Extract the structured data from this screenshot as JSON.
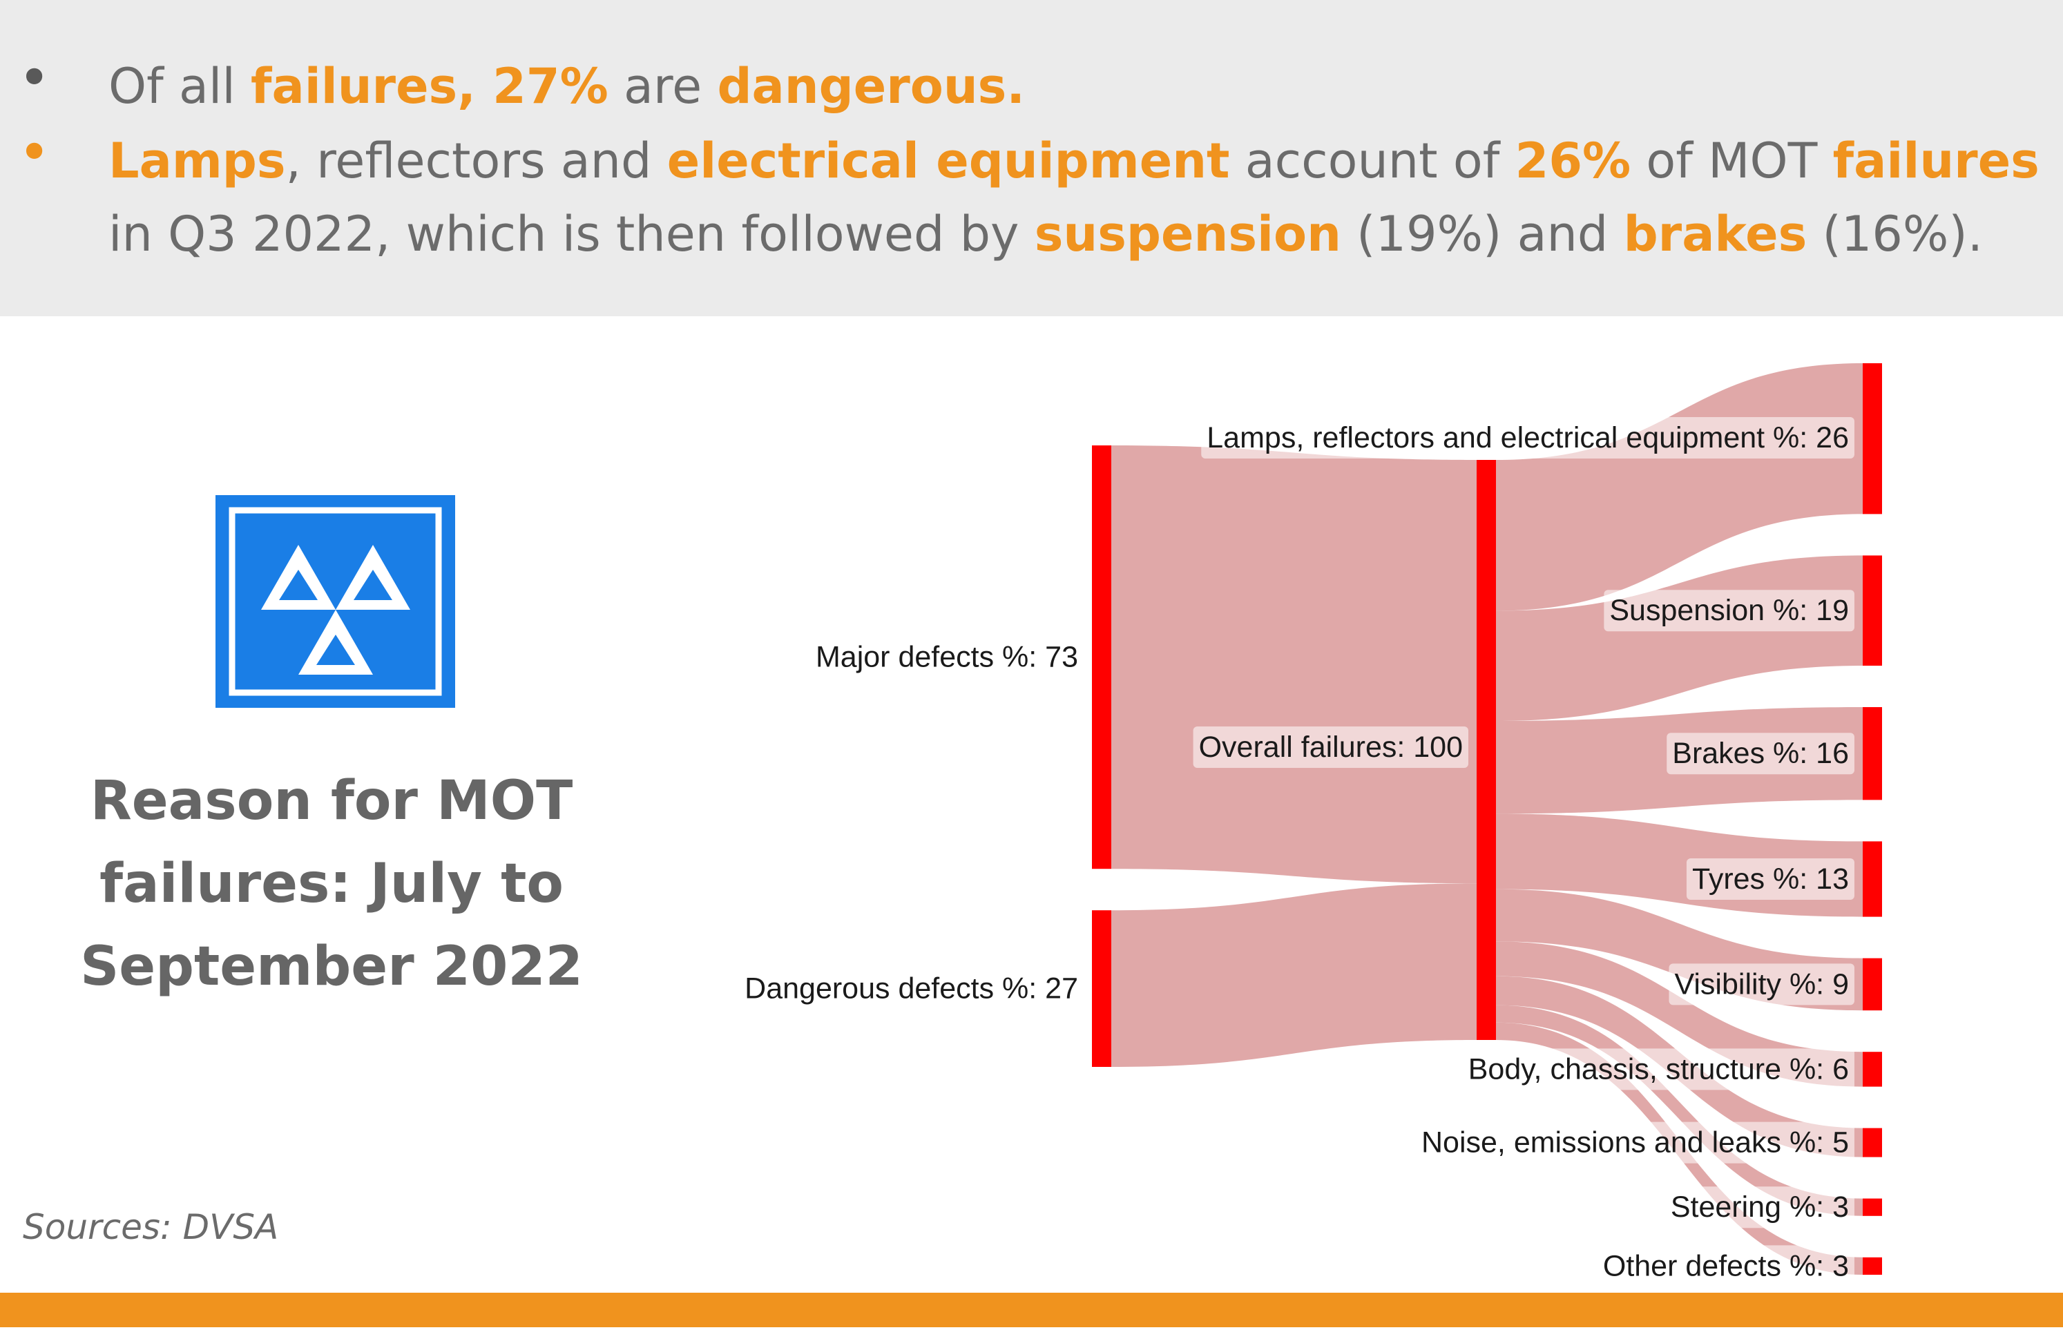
{
  "header": {
    "bullet1": {
      "p1": "Of all ",
      "h1": "failures, 27%",
      "p2": " are ",
      "h2": "dangerous."
    },
    "bullet2": {
      "h1": "Lamps",
      "p1": ", reflectors and ",
      "h2": "electrical equipment",
      "p2": " account of ",
      "h3": "26%",
      "p3": " of MOT ",
      "h4": "failures",
      "p4": " in Q3 2022, which is then followed by ",
      "h5": "suspension",
      "p5": " (19%) and ",
      "h6": "brakes",
      "p6": " (16%)."
    }
  },
  "side_title": {
    "line1": "Reason for MOT",
    "line2": "failures: July to",
    "line3": "September 2022"
  },
  "source_note": "Sources: DVSA",
  "colors": {
    "accent": "#f0931e",
    "node": "#ff0000",
    "link": "#dea3a3",
    "logo_blue": "#1a7ee6"
  },
  "chart_data": {
    "type": "sankey",
    "nodes": [
      {
        "id": "major",
        "label": "Major defects %: 73",
        "value": 73,
        "column": 0
      },
      {
        "id": "dangerous",
        "label": "Dangerous defects %: 27",
        "value": 27,
        "column": 0
      },
      {
        "id": "overall",
        "label": "Overall failures: 100",
        "value": 100,
        "column": 1
      },
      {
        "id": "lamps",
        "label": "Lamps, reflectors and electrical equipment %: 26",
        "value": 26,
        "column": 2
      },
      {
        "id": "suspension",
        "label": "Suspension %: 19",
        "value": 19,
        "column": 2
      },
      {
        "id": "brakes",
        "label": "Brakes %: 16",
        "value": 16,
        "column": 2
      },
      {
        "id": "tyres",
        "label": "Tyres %: 13",
        "value": 13,
        "column": 2
      },
      {
        "id": "visibility",
        "label": "Visibility %: 9",
        "value": 9,
        "column": 2
      },
      {
        "id": "body",
        "label": "Body, chassis, structure %: 6",
        "value": 6,
        "column": 2
      },
      {
        "id": "noise",
        "label": "Noise, emissions and leaks %: 5",
        "value": 5,
        "column": 2
      },
      {
        "id": "steering",
        "label": "Steering %: 3",
        "value": 3,
        "column": 2
      },
      {
        "id": "other",
        "label": "Other defects %: 3",
        "value": 3,
        "column": 2
      }
    ],
    "links": [
      {
        "source": "major",
        "target": "overall",
        "value": 73
      },
      {
        "source": "dangerous",
        "target": "overall",
        "value": 27
      },
      {
        "source": "overall",
        "target": "lamps",
        "value": 26
      },
      {
        "source": "overall",
        "target": "suspension",
        "value": 19
      },
      {
        "source": "overall",
        "target": "brakes",
        "value": 16
      },
      {
        "source": "overall",
        "target": "tyres",
        "value": 13
      },
      {
        "source": "overall",
        "target": "visibility",
        "value": 9
      },
      {
        "source": "overall",
        "target": "body",
        "value": 6
      },
      {
        "source": "overall",
        "target": "noise",
        "value": 5
      },
      {
        "source": "overall",
        "target": "steering",
        "value": 3
      },
      {
        "source": "overall",
        "target": "other",
        "value": 3
      }
    ]
  }
}
